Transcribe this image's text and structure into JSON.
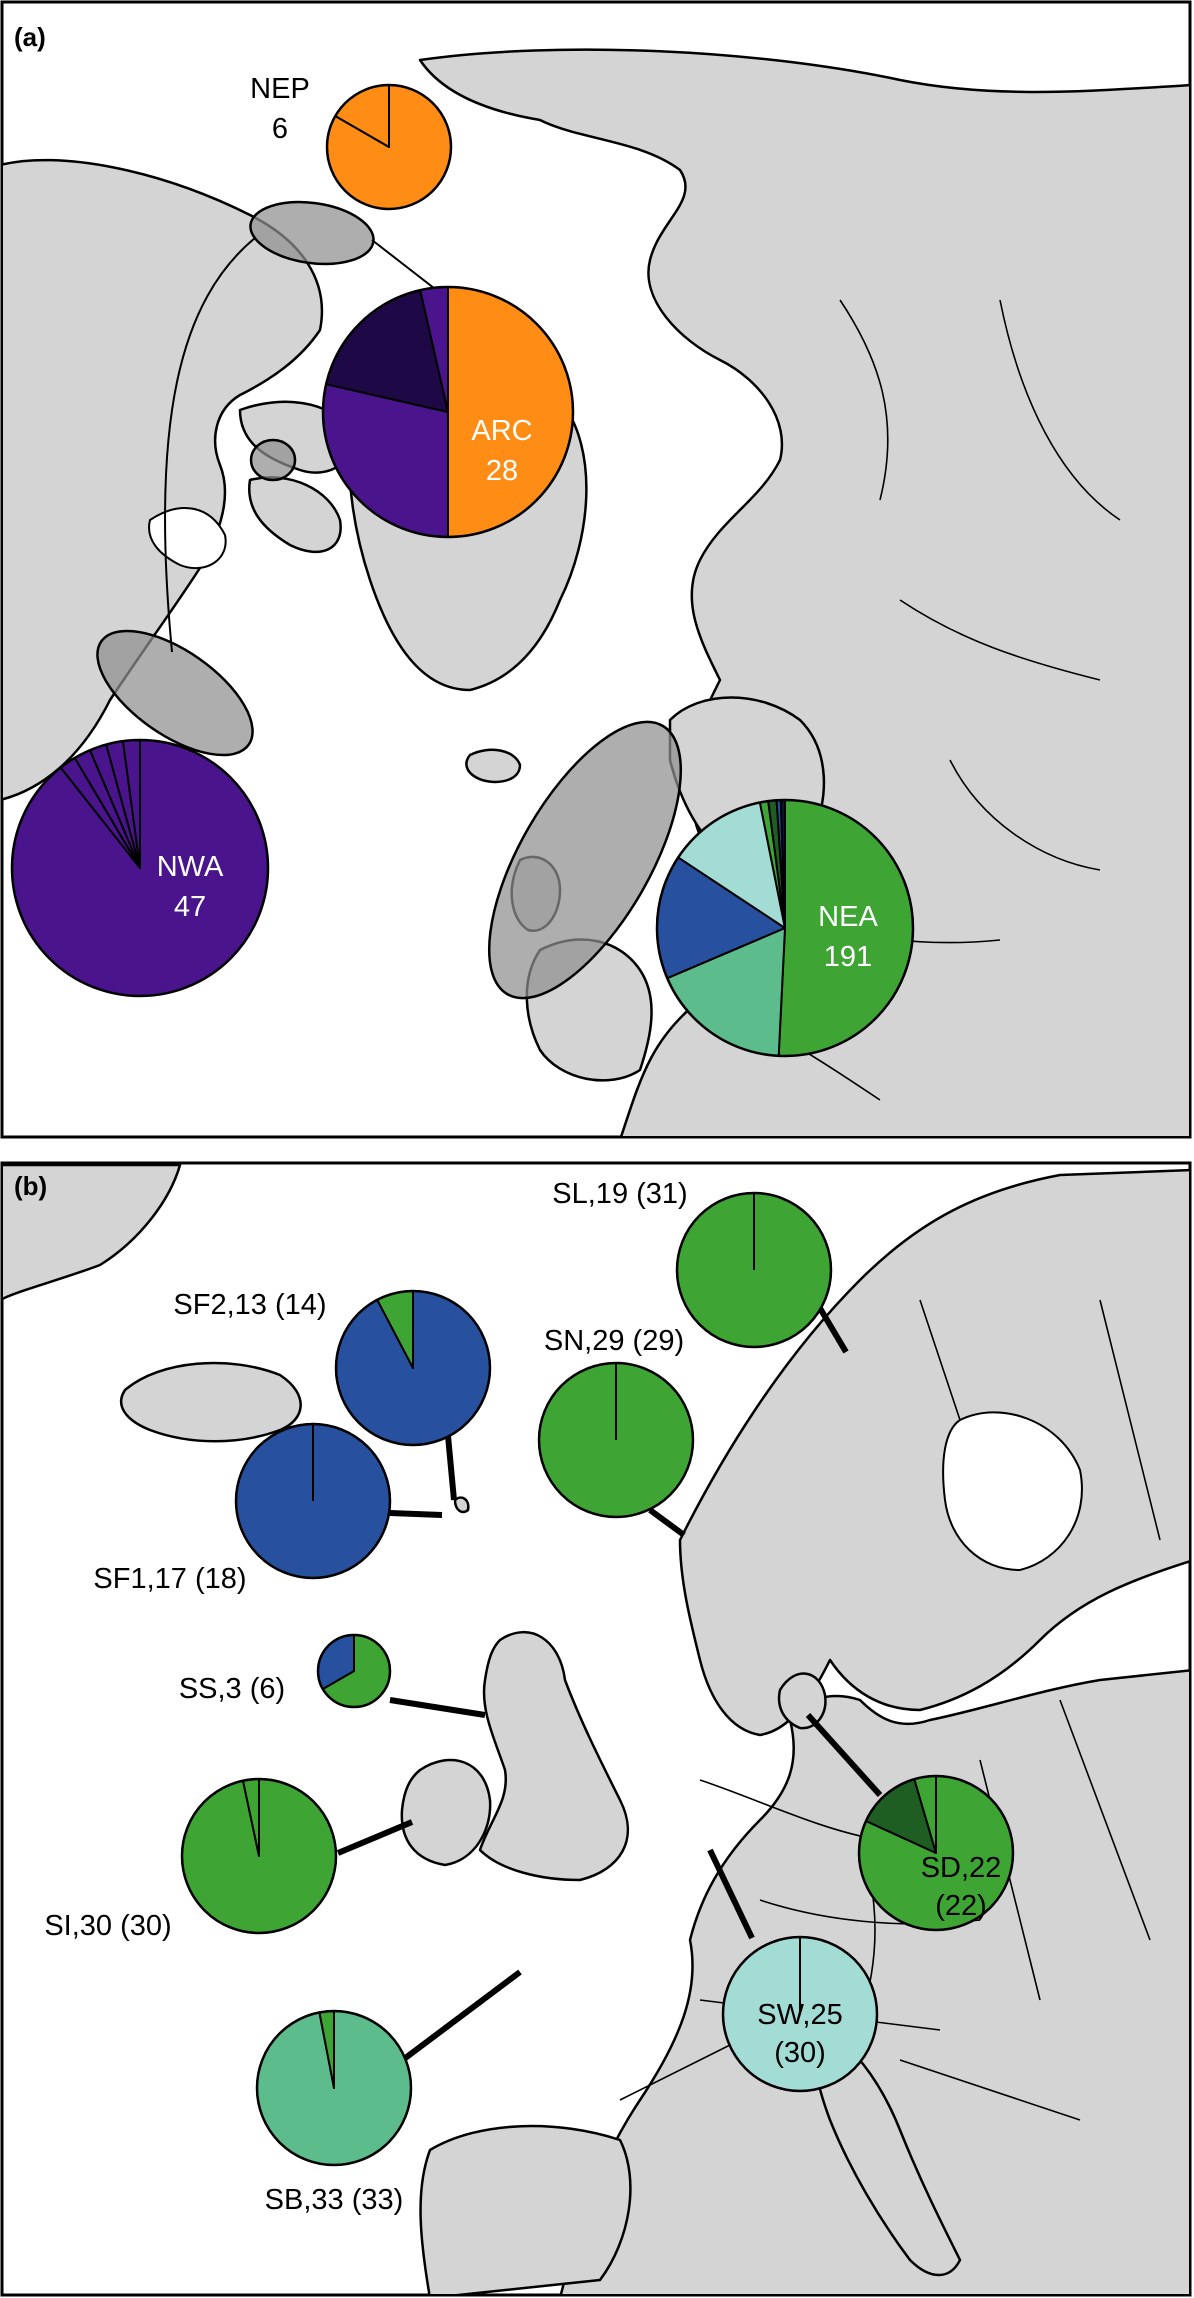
{
  "panels": [
    {
      "letter": "(a)",
      "pies": [
        {
          "name": "NEP",
          "n": "6",
          "slices": [
            {
              "value": 5,
              "color": "#ff8c14"
            },
            {
              "value": 1,
              "color": "#ff8c14"
            }
          ]
        },
        {
          "name": "ARC",
          "n": "28",
          "slices": [
            {
              "value": 14,
              "color": "#ff8c14"
            },
            {
              "value": 8,
              "color": "#4a148c"
            },
            {
              "value": 5,
              "color": "#1e0845"
            },
            {
              "value": 1,
              "color": "#4a148c"
            }
          ]
        },
        {
          "name": "NWA",
          "n": "47",
          "slices": [
            {
              "value": 42,
              "color": "#4a148c"
            },
            {
              "value": 1,
              "color": "#4a148c"
            },
            {
              "value": 1,
              "color": "#4a148c"
            },
            {
              "value": 1,
              "color": "#4a148c"
            },
            {
              "value": 1,
              "color": "#4a148c"
            },
            {
              "value": 1,
              "color": "#4a148c"
            }
          ]
        },
        {
          "name": "NEA",
          "n": "191",
          "slices": [
            {
              "value": 97,
              "color": "#3ea535"
            },
            {
              "value": 34,
              "color": "#5cbc8c"
            },
            {
              "value": 30,
              "color": "#27509e"
            },
            {
              "value": 24,
              "color": "#a2dcd4"
            },
            {
              "value": 2,
              "color": "#3ea535"
            },
            {
              "value": 2,
              "color": "#1f5e22"
            },
            {
              "value": 1,
              "color": "#27509e"
            },
            {
              "value": 1,
              "color": "#0a1433"
            }
          ]
        }
      ]
    },
    {
      "letter": "(b)",
      "pies": [
        {
          "label": "SL,19 (31)",
          "slices": [
            {
              "value": 1,
              "color": "#3ea535"
            }
          ]
        },
        {
          "label": "SF2,13 (14)",
          "slices": [
            {
              "value": 12,
              "color": "#27509e"
            },
            {
              "value": 1,
              "color": "#3ea535"
            }
          ]
        },
        {
          "label": "SN,29 (29)",
          "slices": [
            {
              "value": 1,
              "color": "#3ea535"
            }
          ]
        },
        {
          "label": "SF1,17 (18)",
          "slices": [
            {
              "value": 1,
              "color": "#27509e"
            }
          ]
        },
        {
          "label": "SS,3 (6)",
          "slices": [
            {
              "value": 2,
              "color": "#3ea535"
            },
            {
              "value": 1,
              "color": "#27509e"
            }
          ]
        },
        {
          "label": "SI,30 (30)",
          "slices": [
            {
              "value": 29,
              "color": "#3ea535"
            },
            {
              "value": 1,
              "color": "#3ea535"
            }
          ]
        },
        {
          "label": "SD,22",
          "label2": "(22)",
          "slices": [
            {
              "value": 18,
              "color": "#3ea535"
            },
            {
              "value": 3,
              "color": "#1f5e22"
            },
            {
              "value": 1,
              "color": "#3ea535"
            }
          ]
        },
        {
          "label": "SW,25",
          "label2": "(30)",
          "slices": [
            {
              "value": 1,
              "color": "#a2dcd4"
            }
          ]
        },
        {
          "label": "SB,33 (33)",
          "slices": [
            {
              "value": 32,
              "color": "#5cbc8c"
            },
            {
              "value": 1,
              "color": "#3ea535"
            }
          ]
        }
      ]
    }
  ]
}
